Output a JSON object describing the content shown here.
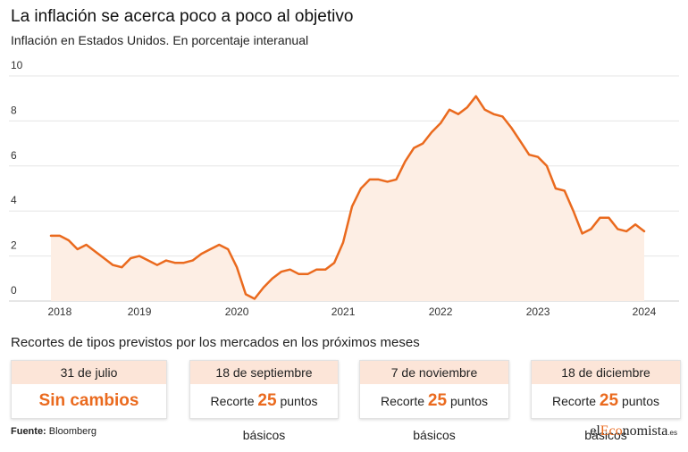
{
  "chart_data": {
    "type": "area",
    "title": "La inflación se acerca poco a poco al objetivo",
    "subtitle": "Inflación en Estados Unidos. En porcentaje interanual",
    "categories": [
      null,
      "2018",
      null,
      null,
      null,
      null,
      null,
      null,
      null,
      null,
      "2019",
      null,
      null,
      null,
      null,
      null,
      null,
      null,
      null,
      null,
      null,
      "2020",
      null,
      null,
      null,
      null,
      null,
      null,
      null,
      null,
      null,
      null,
      null,
      "2021",
      null,
      null,
      null,
      null,
      null,
      null,
      null,
      null,
      null,
      null,
      "2022",
      null,
      null,
      null,
      null,
      null,
      null,
      null,
      null,
      null,
      null,
      "2023",
      null,
      null,
      null,
      null,
      null,
      null,
      null,
      null,
      null,
      null,
      null,
      "2024"
    ],
    "values": [
      2.9,
      2.9,
      2.7,
      2.3,
      2.5,
      2.2,
      1.9,
      1.6,
      1.5,
      1.9,
      2.0,
      1.8,
      1.6,
      1.8,
      1.7,
      1.7,
      1.8,
      2.1,
      2.3,
      2.5,
      2.3,
      1.5,
      0.3,
      0.1,
      0.6,
      1.0,
      1.3,
      1.4,
      1.2,
      1.2,
      1.4,
      1.4,
      1.7,
      2.6,
      4.2,
      5.0,
      5.4,
      5.4,
      5.3,
      5.4,
      6.2,
      6.8,
      7.0,
      7.5,
      7.9,
      8.5,
      8.3,
      8.6,
      9.1,
      8.5,
      8.3,
      8.2,
      7.7,
      7.1,
      6.5,
      6.4,
      6.0,
      5.0,
      4.9,
      4.0,
      3.0,
      3.2,
      3.7,
      3.7,
      3.2,
      3.1,
      3.4,
      3.1
    ],
    "color": "#ea6a1e",
    "fill": "#fdeee4",
    "ylim": [
      0,
      10
    ],
    "yticks": [
      0,
      2,
      4,
      6,
      8,
      10
    ],
    "grid": true
  },
  "forecasts": {
    "title": "Recortes de tipos previstos por los mercados en los próximos meses",
    "cards": [
      {
        "date": "31 de julio",
        "text": "Sin cambios"
      },
      {
        "date": "18 de septiembre",
        "prefix": "Recorte",
        "value": 25,
        "suffix": "puntos básicos"
      },
      {
        "date": "7 de noviembre",
        "prefix": "Recorte",
        "value": 25,
        "suffix": "puntos básicos"
      },
      {
        "date": "18 de diciembre",
        "prefix": "Recorte",
        "value": 25,
        "suffix": "puntos básicos"
      }
    ]
  },
  "footer": {
    "source_label": "Fuente:",
    "source": "Bloomberg",
    "logo": [
      "el",
      "Eco",
      "nomista",
      ".es"
    ]
  }
}
